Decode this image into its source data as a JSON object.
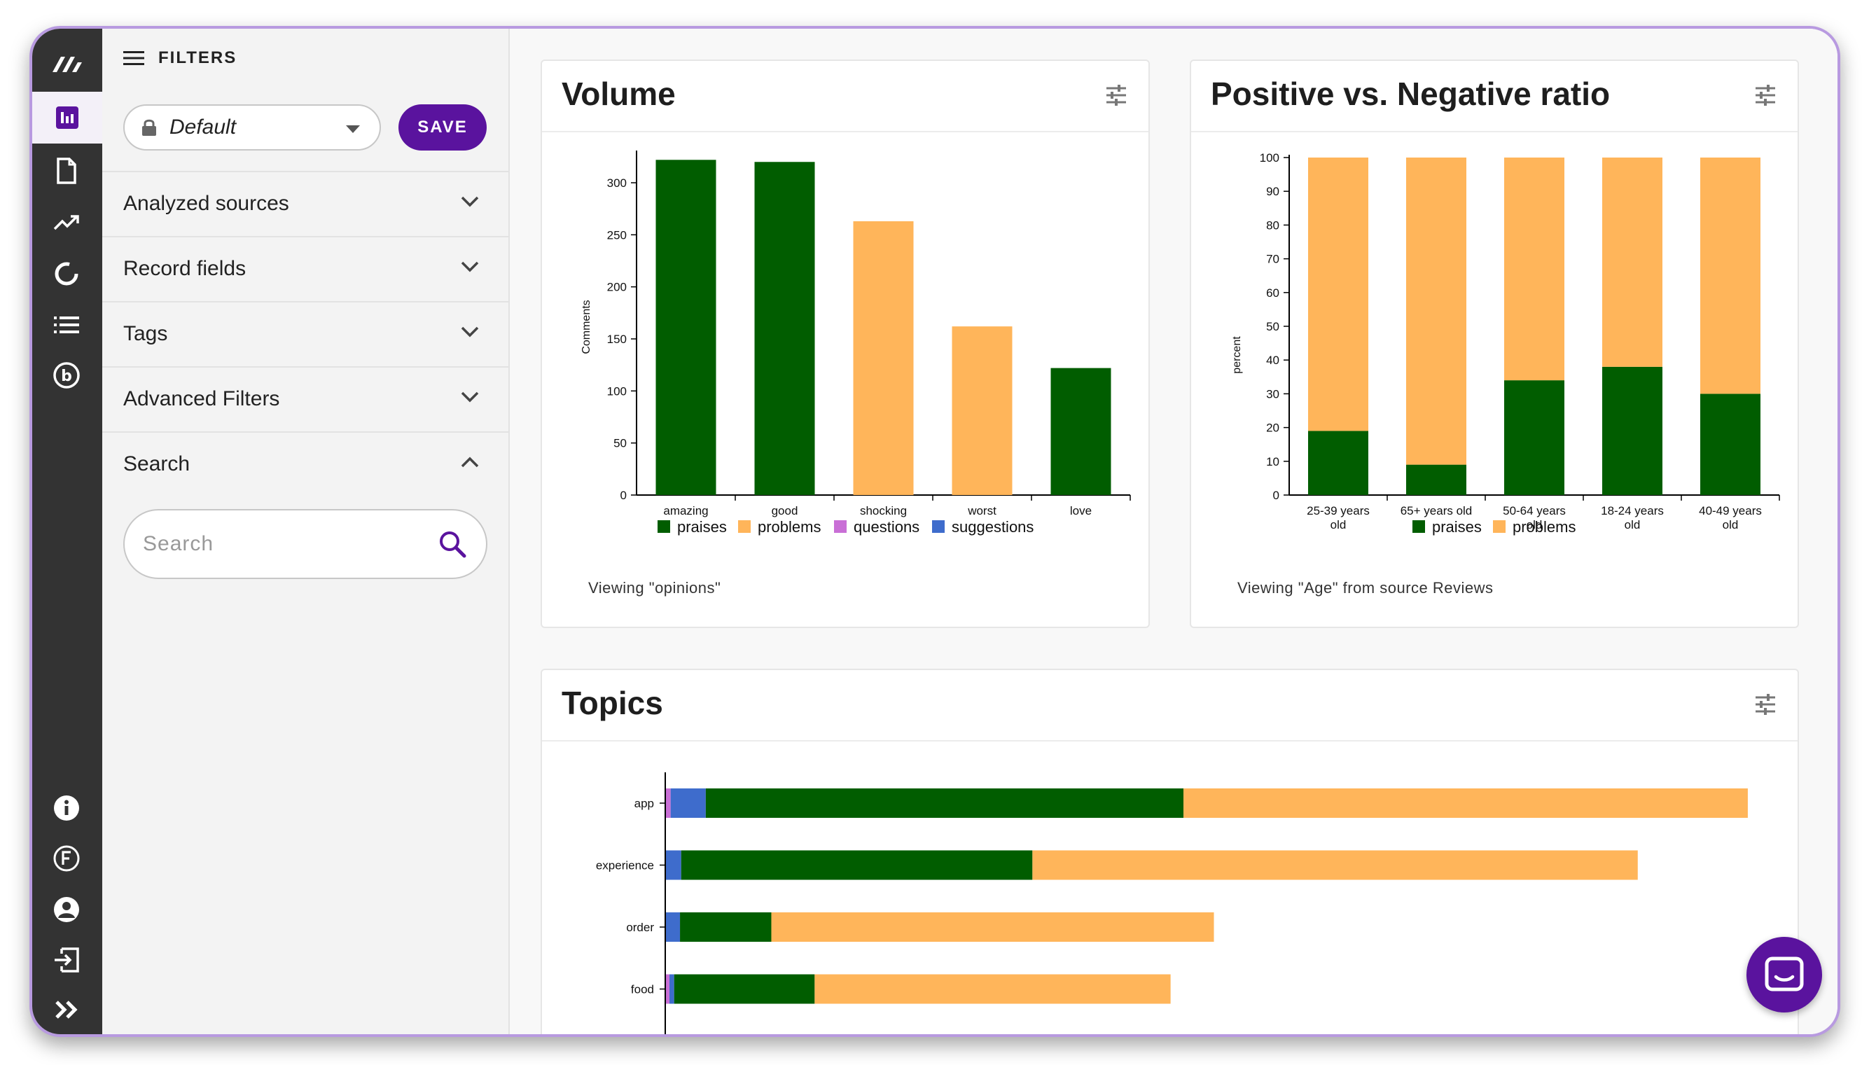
{
  "filters": {
    "header": "FILTERS",
    "preset": "Default",
    "save_label": "SAVE",
    "sections": [
      "Analyzed sources",
      "Record fields",
      "Tags",
      "Advanced Filters",
      "Search"
    ],
    "search_placeholder": "Search"
  },
  "colors": {
    "praises": "#015d00",
    "problems": "#ffb55a",
    "questions": "#c96fd6",
    "suggestions": "#3e6ccc",
    "accent": "#5a139e"
  },
  "volume": {
    "title": "Volume",
    "footnote": "Viewing \"opinions\"",
    "legend": [
      "praises",
      "problems",
      "questions",
      "suggestions"
    ]
  },
  "ratio": {
    "title": "Positive vs. Negative ratio",
    "footnote": "Viewing \"Age\" from source Reviews",
    "legend": [
      "praises",
      "problems"
    ]
  },
  "topics": {
    "title": "Topics"
  },
  "chart_data": [
    {
      "type": "bar",
      "title": "Volume",
      "ylabel": "Comments",
      "ylim": [
        0,
        320
      ],
      "yticks": [
        0,
        50,
        100,
        150,
        200,
        250,
        300
      ],
      "categories": [
        "amazing",
        "good",
        "shocking",
        "worst",
        "love"
      ],
      "series": [
        {
          "name": "praises",
          "values": [
            322,
            320,
            0,
            0,
            122
          ]
        },
        {
          "name": "problems",
          "values": [
            0,
            0,
            263,
            162,
            0
          ]
        },
        {
          "name": "questions",
          "values": [
            0,
            0,
            0,
            0,
            0
          ]
        },
        {
          "name": "suggestions",
          "values": [
            0,
            0,
            0,
            0,
            0
          ]
        }
      ]
    },
    {
      "type": "bar",
      "stacked": true,
      "title": "Positive vs. Negative ratio",
      "ylabel": "percent",
      "ylim": [
        0,
        100
      ],
      "yticks": [
        0,
        10,
        20,
        30,
        40,
        50,
        60,
        70,
        80,
        90,
        100
      ],
      "categories": [
        [
          "25-39 years",
          "old"
        ],
        [
          "65+ years old"
        ],
        [
          "50-64 years",
          "old"
        ],
        [
          "18-24 years",
          "old"
        ],
        [
          "40-49 years",
          "old"
        ]
      ],
      "series": [
        {
          "name": "praises",
          "values": [
            19,
            9,
            34,
            38,
            30
          ]
        },
        {
          "name": "problems",
          "values": [
            81,
            91,
            66,
            62,
            70
          ]
        }
      ]
    },
    {
      "type": "bar",
      "orientation": "horizontal",
      "stacked": true,
      "title": "Topics",
      "categories": [
        "app",
        "experience",
        "order",
        "food"
      ],
      "series": [
        {
          "name": "questions",
          "values": [
            4,
            0,
            0,
            3
          ]
        },
        {
          "name": "suggestions",
          "values": [
            30,
            13,
            12,
            4
          ]
        },
        {
          "name": "praises",
          "values": [
            408,
            300,
            78,
            120
          ]
        },
        {
          "name": "problems",
          "values": [
            482,
            517,
            378,
            304
          ]
        }
      ]
    }
  ]
}
